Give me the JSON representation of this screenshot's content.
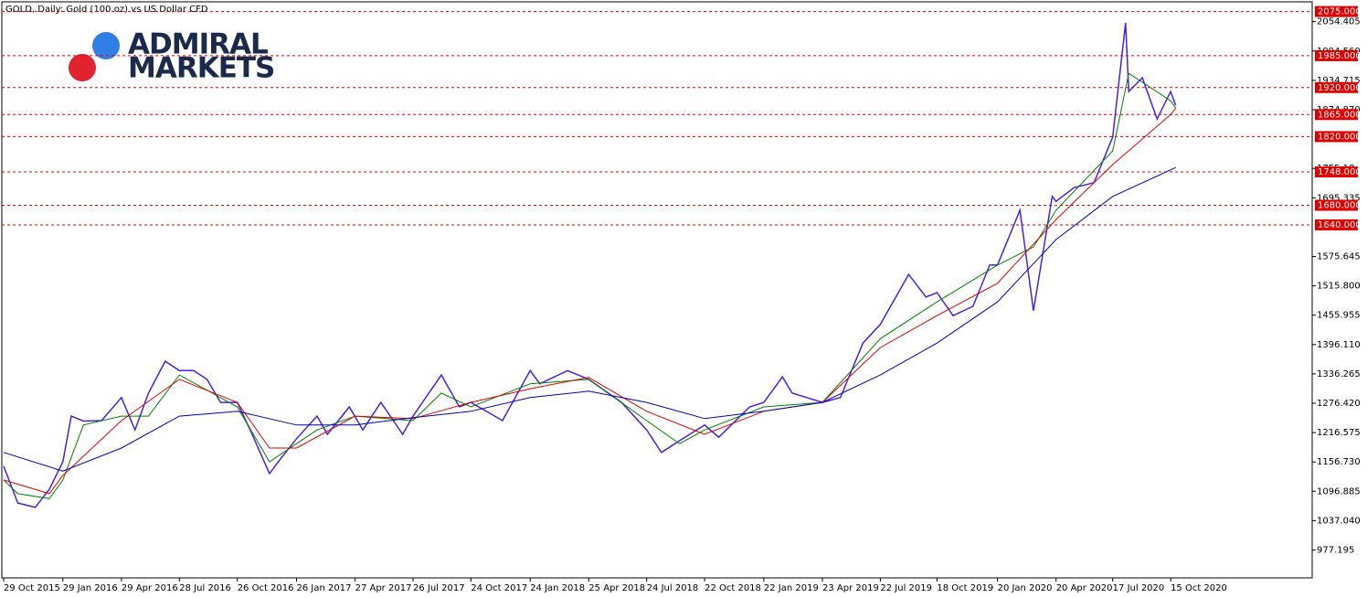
{
  "chart_data": {
    "type": "line",
    "title": "GOLD, Daily:  Gold (100 oz) vs US Dollar CFD",
    "logo": [
      "ADMIRAL",
      "MARKETS"
    ],
    "ylim": [
      920.3,
      2094.8
    ],
    "yticks": [
      2054.405,
      {
        "value": 1994.56,
        "label": "1994.560"
      },
      1934.715,
      {
        "value": 1874.87,
        "label": "1874.870"
      },
      1755.18,
      1695.335,
      1575.645,
      {
        "value": 1515.8,
        "label": "1515.800"
      },
      1455.955,
      {
        "value": 1396.11,
        "label": "1396.110"
      },
      1336.265,
      {
        "value": 1276.42,
        "label": "1276.420"
      },
      1216.575,
      {
        "value": 1156.73,
        "label": "1156.730"
      },
      1096.885,
      {
        "value": 1037.04,
        "label": "1037.040"
      },
      977.195
    ],
    "xticks": [
      "29 Oct 2015",
      "29 Jan 2016",
      "29 Apr 2016",
      "28 Jul 2016",
      "26 Oct 2016",
      "26 Jan 2017",
      "27 Apr 2017",
      "26 Jul 2017",
      "24 Oct 2017",
      "24 Jan 2018",
      "25 Apr 2018",
      "24 Jul 2018",
      "22 Oct 2018",
      "22 Jan 2019",
      "23 Apr 2019",
      "22 Jul 2019",
      "18 Oct 2019",
      "20 Jan 2020",
      "20 Apr 2020",
      "17 Jul 2020",
      "15 Oct 2020"
    ],
    "levels": [
      {
        "value": 2075,
        "label": "2075.000"
      },
      {
        "value": 1985,
        "label": "1985.000"
      },
      {
        "value": 1920,
        "label": "1920.000"
      },
      {
        "value": 1865,
        "label": "1865.000"
      },
      {
        "value": 1820,
        "label": "1820.000"
      },
      {
        "value": 1748,
        "label": "1748.000"
      },
      {
        "value": 1680,
        "label": "1680.000"
      },
      {
        "value": 1640,
        "label": "1640.000"
      }
    ],
    "level_color": "#e00000",
    "series": [
      {
        "color": "#4b1fe0",
        "x": [
          "29 Oct 2015",
          "20 Nov 2015",
          "17 Dec 2015",
          "8 Jan 2016",
          "29 Jan 2016",
          "11 Feb 2016",
          "1 Mar 2016",
          "29 Mar 2016",
          "29 Apr 2016",
          "20 May 2016",
          "10 Jun 2016",
          "6 Jul 2016",
          "28 Jul 2016",
          "19 Aug 2016",
          "9 Sep 2016",
          "30 Sep 2016",
          "26 Oct 2016",
          "15 Nov 2016",
          "15 Dec 2016",
          "3 Jan 2017",
          "26 Jan 2017",
          "27 Feb 2017",
          "15 Mar 2017",
          "18 Apr 2017",
          "9 May 2017",
          "6 Jun 2017",
          "10 Jul 2017",
          "26 Jul 2017",
          "8 Sep 2017",
          "6 Oct 2017",
          "24 Oct 2017",
          "12 Dec 2017",
          "24 Jan 2018",
          "8 Feb 2018",
          "23 Mar 2018",
          "25 Apr 2018",
          "21 May 2018",
          "15 Jun 2018",
          "24 Jul 2018",
          "16 Aug 2018",
          "13 Sep 2018",
          "22 Oct 2018",
          "13 Nov 2018",
          "31 Dec 2018",
          "22 Jan 2019",
          "20 Feb 2019",
          "7 Mar 2019",
          "23 Apr 2019",
          "21 May 2019",
          "25 Jun 2019",
          "22 Jul 2019",
          "4 Sep 2019",
          "1 Oct 2019",
          "18 Oct 2019",
          "12 Nov 2019",
          "13 Dec 2019",
          "8 Jan 2020",
          "20 Jan 2020",
          "24 Feb 2020",
          "16 Mar 2020",
          "14 Apr 2020",
          "20 Apr 2020",
          "18 May 2020",
          "18 Jun 2020",
          "17 Jul 2020",
          "6 Aug 2020",
          "11 Aug 2020",
          "1 Sep 2020",
          "24 Sep 2020",
          "15 Oct 2020",
          "23 Oct 2020"
        ],
        "values": [
          1148,
          1073,
          1064,
          1101,
          1157,
          1250,
          1240,
          1241,
          1288,
          1222,
          1297,
          1362,
          1343,
          1343,
          1325,
          1278,
          1278,
          1222,
          1133,
          1166,
          1204,
          1250,
          1213,
          1269,
          1222,
          1278,
          1213,
          1250,
          1334,
          1269,
          1278,
          1241,
          1343,
          1316,
          1343,
          1325,
          1301,
          1278,
          1222,
          1176,
          1200,
          1232,
          1207,
          1269,
          1278,
          1330,
          1297,
          1278,
          1288,
          1399,
          1437,
          1539,
          1493,
          1502,
          1455,
          1474,
          1558,
          1558,
          1670,
          1465,
          1698,
          1688,
          1716,
          1726,
          1819,
          2052,
          1912,
          1940,
          1856,
          1912,
          1884
        ]
      },
      {
        "color": "#008000",
        "x": [
          "29 Oct 2015",
          "20 Nov 2015",
          "8 Jan 2016",
          "29 Jan 2016",
          "1 Mar 2016",
          "29 Apr 2016",
          "10 Jun 2016",
          "28 Jul 2016",
          "26 Oct 2016",
          "15 Dec 2016",
          "27 Feb 2017",
          "27 Apr 2017",
          "26 Jul 2017",
          "8 Sep 2017",
          "24 Oct 2017",
          "24 Jan 2018",
          "25 Apr 2018",
          "24 Jul 2018",
          "13 Sep 2018",
          "22 Oct 2018",
          "22 Jan 2019",
          "23 Apr 2019",
          "22 Jul 2019",
          "18 Oct 2019",
          "20 Jan 2020",
          "16 Mar 2020",
          "20 Apr 2020",
          "17 Jul 2020",
          "11 Aug 2020",
          "15 Oct 2020",
          "23 Oct 2020"
        ],
        "values": [
          1120,
          1092,
          1082,
          1120,
          1232,
          1250,
          1250,
          1334,
          1269,
          1157,
          1222,
          1250,
          1241,
          1297,
          1269,
          1316,
          1325,
          1241,
          1194,
          1222,
          1269,
          1278,
          1408,
          1483,
          1558,
          1595,
          1670,
          1791,
          1949,
          1893,
          1878
        ]
      },
      {
        "color": "#e00000",
        "x": [
          "29 Oct 2015",
          "8 Jan 2016",
          "29 Jan 2016",
          "29 Apr 2016",
          "28 Jul 2016",
          "26 Oct 2016",
          "15 Dec 2016",
          "26 Jan 2017",
          "27 Apr 2017",
          "26 Jul 2017",
          "24 Oct 2017",
          "24 Jan 2018",
          "25 Apr 2018",
          "24 Jul 2018",
          "22 Oct 2018",
          "22 Jan 2019",
          "23 Apr 2019",
          "22 Jul 2019",
          "18 Oct 2019",
          "20 Jan 2020",
          "20 Apr 2020",
          "17 Jul 2020",
          "15 Oct 2020",
          "23 Oct 2020"
        ],
        "values": [
          1120,
          1092,
          1129,
          1241,
          1325,
          1278,
          1185,
          1185,
          1250,
          1245,
          1278,
          1306,
          1329,
          1260,
          1213,
          1260,
          1278,
          1390,
          1455,
          1521,
          1651,
          1763,
          1865,
          1878
        ]
      },
      {
        "color": "#0000c0",
        "x": [
          "29 Oct 2015",
          "29 Jan 2016",
          "29 Apr 2016",
          "28 Jul 2016",
          "26 Oct 2016",
          "26 Jan 2017",
          "27 Apr 2017",
          "26 Jul 2017",
          "24 Oct 2017",
          "24 Jan 2018",
          "25 Apr 2018",
          "24 Jul 2018",
          "22 Oct 2018",
          "22 Jan 2019",
          "23 Apr 2019",
          "22 Jul 2019",
          "18 Oct 2019",
          "20 Jan 2020",
          "20 Apr 2020",
          "17 Jul 2020",
          "23 Oct 2020"
        ],
        "values": [
          1176,
          1138,
          1185,
          1250,
          1260,
          1232,
          1232,
          1247,
          1260,
          1288,
          1301,
          1278,
          1245,
          1260,
          1278,
          1334,
          1399,
          1483,
          1610,
          1698,
          1757
        ]
      }
    ]
  }
}
